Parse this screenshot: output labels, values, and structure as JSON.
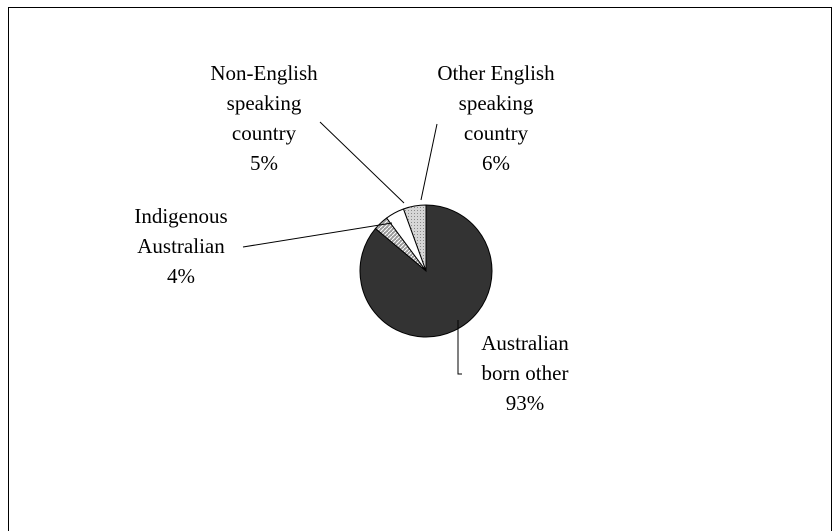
{
  "chart_data": {
    "type": "pie",
    "slices": [
      {
        "label_lines": [
          "Other English",
          "speaking",
          "country"
        ],
        "value_label": "6%",
        "value": 6,
        "fill": "#d0d0d0",
        "pattern": "light"
      },
      {
        "label_lines": [
          "Non-English",
          "speaking",
          "country"
        ],
        "value_label": "5%",
        "value": 5,
        "fill": "#ffffff",
        "pattern": "none"
      },
      {
        "label_lines": [
          "Indigenous",
          "Australian"
        ],
        "value_label": "4%",
        "value": 4,
        "fill": "#9a9a9a",
        "pattern": "hatch"
      },
      {
        "label_lines": [
          "Australian",
          "born other"
        ],
        "value_label": "93%",
        "value": 93,
        "fill": "#333333",
        "pattern": "none"
      }
    ],
    "title": "",
    "legend": "none"
  },
  "colors": {
    "border": "#000000",
    "background": "#ffffff"
  }
}
